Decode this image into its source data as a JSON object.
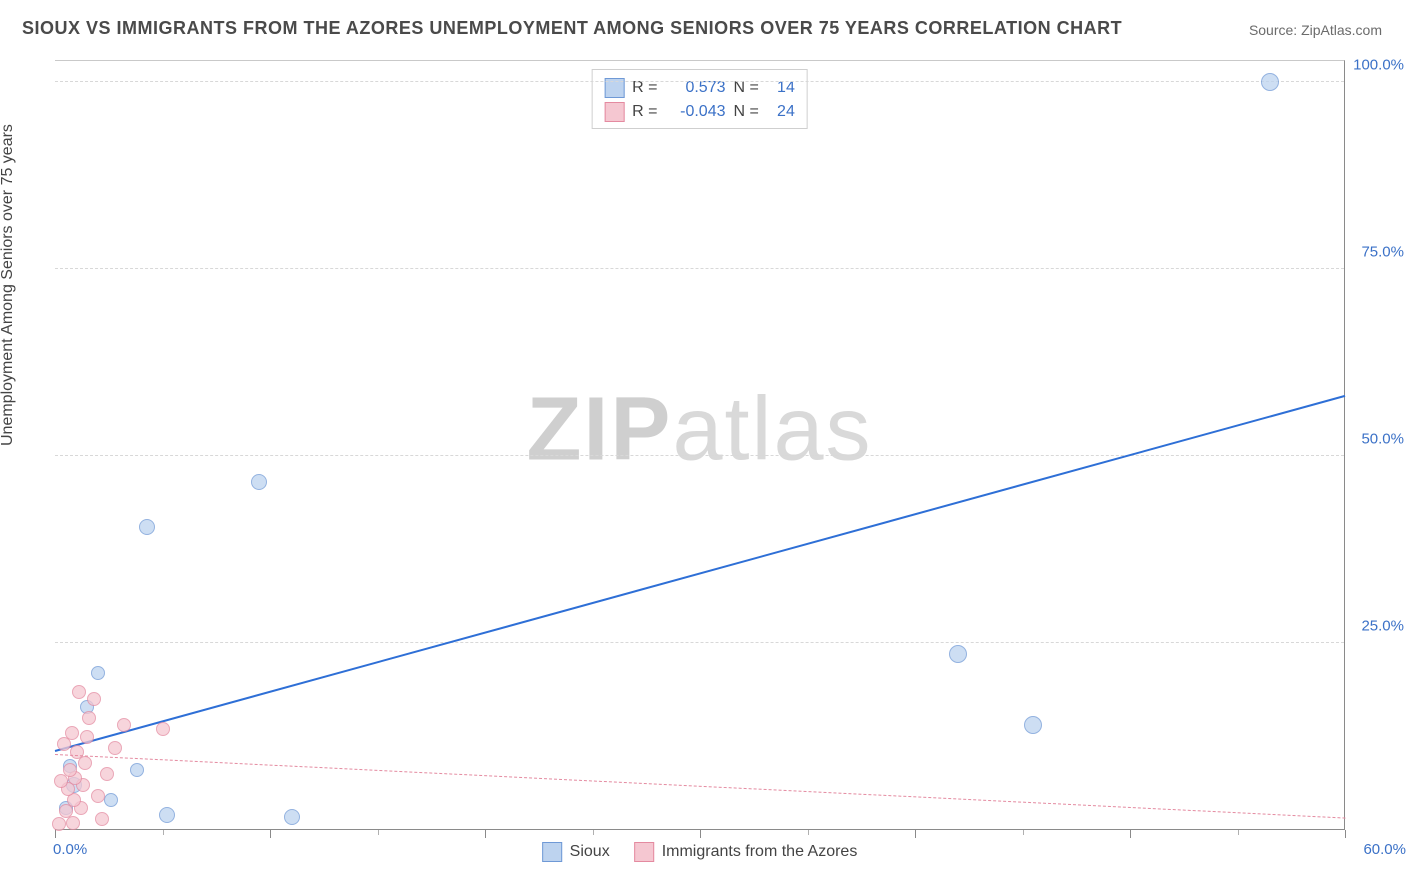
{
  "title": "SIOUX VS IMMIGRANTS FROM THE AZORES UNEMPLOYMENT AMONG SENIORS OVER 75 YEARS CORRELATION CHART",
  "source": "Source: ZipAtlas.com",
  "ylabel": "Unemployment Among Seniors over 75 years",
  "watermark_a": "ZIP",
  "watermark_b": "atlas",
  "chart": {
    "type": "scatter",
    "background_color": "#ffffff",
    "grid_color": "#d8d8d8",
    "axis_color": "#8a8a8a",
    "tick_label_color": "#3b71c7",
    "title_fontsize": 18,
    "label_fontsize": 16,
    "tick_fontsize": 15,
    "xlim": [
      0,
      60
    ],
    "ylim": [
      0,
      103
    ],
    "x_tick_origin": "0.0%",
    "x_tick_end": "60.0%",
    "x_major_ticks": [
      0,
      10,
      20,
      30,
      40,
      50,
      60
    ],
    "x_minor_ticks": [
      5,
      15,
      25,
      35,
      45,
      55
    ],
    "y_ticks": [
      {
        "v": 25,
        "label": "25.0%"
      },
      {
        "v": 50,
        "label": "50.0%"
      },
      {
        "v": 75,
        "label": "75.0%"
      },
      {
        "v": 100,
        "label": "100.0%"
      }
    ],
    "series": [
      {
        "id": "sioux",
        "name": "Sioux",
        "marker_fill": "#bdd3ef",
        "marker_stroke": "#6f99d6",
        "marker_opacity": 0.75,
        "marker_radius": 8,
        "trend_color": "#2e6fd6",
        "trend_style": "solid",
        "trend_width": 2.5,
        "R": "0.573",
        "N": "14",
        "trend": {
          "x1": 0,
          "y1": 10.5,
          "x2": 60,
          "y2": 58
        },
        "points": [
          {
            "x": 56.5,
            "y": 100,
            "r": 9
          },
          {
            "x": 45.5,
            "y": 14,
            "r": 9
          },
          {
            "x": 42.0,
            "y": 23.5,
            "r": 9
          },
          {
            "x": 11.0,
            "y": 1.8,
            "r": 8
          },
          {
            "x": 9.5,
            "y": 46.5,
            "r": 8
          },
          {
            "x": 5.2,
            "y": 2.0,
            "r": 8
          },
          {
            "x": 4.3,
            "y": 40.5,
            "r": 8
          },
          {
            "x": 3.8,
            "y": 8.0,
            "r": 7
          },
          {
            "x": 2.6,
            "y": 4.0,
            "r": 7
          },
          {
            "x": 2.0,
            "y": 21.0,
            "r": 7
          },
          {
            "x": 1.5,
            "y": 16.5,
            "r": 7
          },
          {
            "x": 0.9,
            "y": 6.0,
            "r": 8
          },
          {
            "x": 0.7,
            "y": 8.5,
            "r": 7
          },
          {
            "x": 0.5,
            "y": 3.0,
            "r": 7
          }
        ]
      },
      {
        "id": "azores",
        "name": "Immigrants from the Azores",
        "marker_fill": "#f5c7d1",
        "marker_stroke": "#e48aa0",
        "marker_opacity": 0.75,
        "marker_radius": 7,
        "trend_color": "#e48aa0",
        "trend_style": "dashed",
        "trend_width": 1.5,
        "R": "-0.043",
        "N": "24",
        "trend": {
          "x1": 0,
          "y1": 10.0,
          "x2": 60,
          "y2": 1.5
        },
        "points": [
          {
            "x": 5.0,
            "y": 13.5,
            "r": 7
          },
          {
            "x": 3.2,
            "y": 14.0,
            "r": 7
          },
          {
            "x": 2.8,
            "y": 11.0,
            "r": 7
          },
          {
            "x": 2.4,
            "y": 7.5,
            "r": 7
          },
          {
            "x": 2.2,
            "y": 1.5,
            "r": 7
          },
          {
            "x": 2.0,
            "y": 4.5,
            "r": 7
          },
          {
            "x": 1.8,
            "y": 17.5,
            "r": 7
          },
          {
            "x": 1.6,
            "y": 15.0,
            "r": 7
          },
          {
            "x": 1.5,
            "y": 12.5,
            "r": 7
          },
          {
            "x": 1.4,
            "y": 9.0,
            "r": 7
          },
          {
            "x": 1.3,
            "y": 6.0,
            "r": 7
          },
          {
            "x": 1.2,
            "y": 3.0,
            "r": 7
          },
          {
            "x": 1.1,
            "y": 18.5,
            "r": 7
          },
          {
            "x": 1.0,
            "y": 10.5,
            "r": 7
          },
          {
            "x": 0.95,
            "y": 7.0,
            "r": 7
          },
          {
            "x": 0.9,
            "y": 4.0,
            "r": 7
          },
          {
            "x": 0.85,
            "y": 1.0,
            "r": 7
          },
          {
            "x": 0.8,
            "y": 13.0,
            "r": 7
          },
          {
            "x": 0.7,
            "y": 8.0,
            "r": 7
          },
          {
            "x": 0.6,
            "y": 5.5,
            "r": 7
          },
          {
            "x": 0.5,
            "y": 2.5,
            "r": 7
          },
          {
            "x": 0.4,
            "y": 11.5,
            "r": 7
          },
          {
            "x": 0.3,
            "y": 6.5,
            "r": 7
          },
          {
            "x": 0.2,
            "y": 0.8,
            "r": 7
          }
        ]
      }
    ]
  },
  "legend_R_label": "R =",
  "legend_N_label": "N ="
}
